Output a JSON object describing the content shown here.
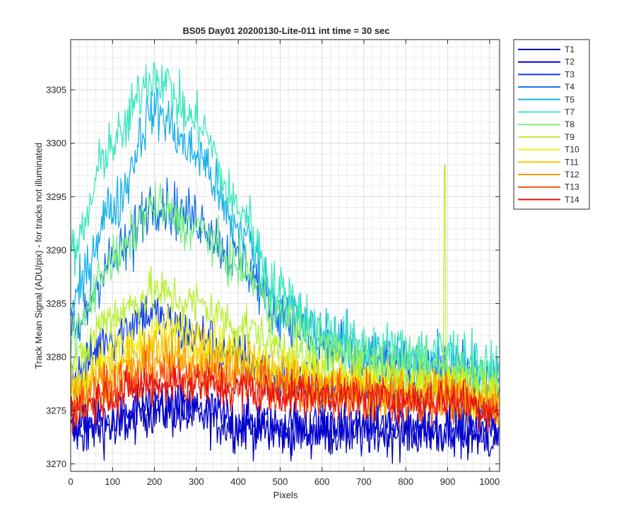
{
  "chart_data": {
    "type": "line",
    "title": "BS05 Day01 20200130-Lite-011 int time = 30 sec",
    "xlabel": "Pixels",
    "ylabel": "Track Mean Signal (ADU/pix) - for tracks not illuminated",
    "xlim": [
      0,
      1024
    ],
    "ylim": [
      3269.3,
      3309.7
    ],
    "x_ticks": [
      0,
      100,
      200,
      300,
      400,
      500,
      600,
      700,
      800,
      900,
      1000
    ],
    "y_ticks": [
      3270,
      3275,
      3280,
      3285,
      3290,
      3295,
      3300,
      3305
    ],
    "grid": true,
    "minor_grid": true,
    "legend_position": "outside-top-right",
    "series": [
      {
        "name": "T1",
        "color": "#0000b0",
        "points": [
          [
            0,
            3273
          ],
          [
            100,
            3273.5
          ],
          [
            200,
            3275
          ],
          [
            300,
            3274.5
          ],
          [
            400,
            3273.5
          ],
          [
            500,
            3273
          ],
          [
            600,
            3273
          ],
          [
            700,
            3273
          ],
          [
            800,
            3273
          ],
          [
            900,
            3273
          ],
          [
            1020,
            3272.5
          ]
        ],
        "noise": 1.2
      },
      {
        "name": "T2",
        "color": "#0000d8",
        "points": [
          [
            0,
            3273.5
          ],
          [
            100,
            3274
          ],
          [
            200,
            3275.5
          ],
          [
            300,
            3275
          ],
          [
            400,
            3274
          ],
          [
            500,
            3273.5
          ],
          [
            600,
            3273.5
          ],
          [
            700,
            3273.5
          ],
          [
            800,
            3273.5
          ],
          [
            900,
            3273.5
          ],
          [
            1020,
            3273
          ]
        ],
        "noise": 1.2
      },
      {
        "name": "T3",
        "color": "#0d3ce6",
        "points": [
          [
            0,
            3278
          ],
          [
            100,
            3282
          ],
          [
            180,
            3284
          ],
          [
            300,
            3282
          ],
          [
            400,
            3280
          ],
          [
            500,
            3278
          ],
          [
            600,
            3277
          ],
          [
            700,
            3277
          ],
          [
            800,
            3276.5
          ],
          [
            900,
            3276.5
          ],
          [
            1020,
            3275.5
          ]
        ],
        "noise": 1.2
      },
      {
        "name": "T4",
        "color": "#1570e8",
        "points": [
          [
            0,
            3282
          ],
          [
            100,
            3289
          ],
          [
            200,
            3294.5
          ],
          [
            300,
            3293
          ],
          [
            400,
            3289
          ],
          [
            500,
            3284
          ],
          [
            600,
            3281
          ],
          [
            700,
            3279.5
          ],
          [
            800,
            3279
          ],
          [
            900,
            3279
          ],
          [
            1020,
            3278
          ]
        ],
        "noise": 1.3
      },
      {
        "name": "T5",
        "color": "#18b0e8",
        "points": [
          [
            0,
            3285
          ],
          [
            100,
            3294
          ],
          [
            200,
            3303
          ],
          [
            300,
            3299
          ],
          [
            400,
            3292
          ],
          [
            500,
            3285
          ],
          [
            600,
            3282
          ],
          [
            700,
            3280.5
          ],
          [
            800,
            3279.5
          ],
          [
            900,
            3279.5
          ],
          [
            1020,
            3278
          ]
        ],
        "noise": 1.3
      },
      {
        "name": "T7",
        "color": "#3ce6c0",
        "points": [
          [
            0,
            3289.5
          ],
          [
            100,
            3300
          ],
          [
            200,
            3306.5
          ],
          [
            300,
            3302
          ],
          [
            400,
            3294
          ],
          [
            500,
            3286
          ],
          [
            600,
            3282.5
          ],
          [
            700,
            3281
          ],
          [
            800,
            3280.5
          ],
          [
            900,
            3280.5
          ],
          [
            1020,
            3278.5
          ]
        ],
        "noise": 1.3
      },
      {
        "name": "T8",
        "color": "#78f080",
        "points": [
          [
            0,
            3282
          ],
          [
            100,
            3289
          ],
          [
            200,
            3294
          ],
          [
            300,
            3292
          ],
          [
            400,
            3288.5
          ],
          [
            500,
            3284
          ],
          [
            600,
            3281
          ],
          [
            700,
            3280
          ],
          [
            800,
            3279
          ],
          [
            900,
            3279
          ],
          [
            1020,
            3278
          ]
        ],
        "noise": 1.1
      },
      {
        "name": "T9",
        "color": "#b8f030",
        "points": [
          [
            0,
            3279
          ],
          [
            100,
            3284
          ],
          [
            200,
            3286
          ],
          [
            300,
            3285
          ],
          [
            400,
            3283
          ],
          [
            500,
            3281
          ],
          [
            600,
            3279
          ],
          [
            700,
            3278.5
          ],
          [
            800,
            3278
          ],
          [
            900,
            3278
          ],
          [
            1020,
            3277
          ]
        ],
        "noise": 1.1
      },
      {
        "name": "T10",
        "color": "#f0f010",
        "points": [
          [
            0,
            3277
          ],
          [
            100,
            3280.5
          ],
          [
            220,
            3282.5
          ],
          [
            300,
            3282
          ],
          [
            400,
            3280.5
          ],
          [
            500,
            3279
          ],
          [
            600,
            3278
          ],
          [
            700,
            3277.5
          ],
          [
            800,
            3277
          ],
          [
            900,
            3277
          ],
          [
            1020,
            3276
          ]
        ],
        "noise": 1.1
      },
      {
        "name": "T11",
        "color": "#f8c800",
        "points": [
          [
            0,
            3276.5
          ],
          [
            100,
            3279
          ],
          [
            200,
            3281
          ],
          [
            300,
            3280.5
          ],
          [
            400,
            3279.5
          ],
          [
            500,
            3278.5
          ],
          [
            600,
            3277.5
          ],
          [
            700,
            3277
          ],
          [
            800,
            3276.5
          ],
          [
            900,
            3276.5
          ],
          [
            1020,
            3275.5
          ]
        ],
        "noise": 1.1
      },
      {
        "name": "T12",
        "color": "#f89800",
        "points": [
          [
            0,
            3276
          ],
          [
            100,
            3278
          ],
          [
            200,
            3279.5
          ],
          [
            300,
            3279
          ],
          [
            400,
            3278.5
          ],
          [
            500,
            3277.5
          ],
          [
            600,
            3277
          ],
          [
            700,
            3276.5
          ],
          [
            800,
            3276.5
          ],
          [
            900,
            3276.5
          ],
          [
            1020,
            3275.5
          ]
        ],
        "noise": 1.1
      },
      {
        "name": "T13",
        "color": "#f85010",
        "points": [
          [
            0,
            3275.5
          ],
          [
            100,
            3277
          ],
          [
            200,
            3278
          ],
          [
            300,
            3278
          ],
          [
            400,
            3277.5
          ],
          [
            500,
            3277
          ],
          [
            600,
            3276.5
          ],
          [
            700,
            3276.5
          ],
          [
            800,
            3276
          ],
          [
            900,
            3276
          ],
          [
            1020,
            3275
          ]
        ],
        "noise": 1.1
      },
      {
        "name": "T14",
        "color": "#e81010",
        "points": [
          [
            0,
            3275
          ],
          [
            100,
            3276.5
          ],
          [
            200,
            3277.5
          ],
          [
            300,
            3277.5
          ],
          [
            400,
            3277
          ],
          [
            500,
            3276.5
          ],
          [
            600,
            3276.5
          ],
          [
            700,
            3276
          ],
          [
            800,
            3276
          ],
          [
            900,
            3276
          ],
          [
            1020,
            3275
          ]
        ],
        "noise": 1.0
      }
    ],
    "annotations": [
      {
        "series": "T4",
        "spike_at": 150,
        "spike_to": 3288
      },
      {
        "series": "T9",
        "spike_at": 893,
        "spike_to": 3298
      }
    ]
  }
}
